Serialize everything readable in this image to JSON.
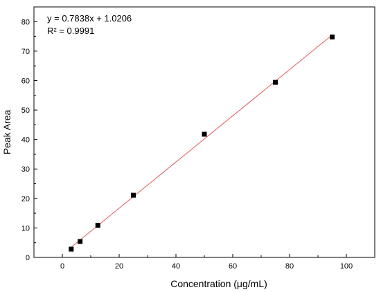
{
  "chart_data": {
    "type": "scatter",
    "xlabel": "Concentration (μg/mL)",
    "ylabel": "Peak Area",
    "xlim": [
      -10,
      110
    ],
    "ylim": [
      0,
      85
    ],
    "xticks": [
      0,
      20,
      40,
      60,
      80,
      100
    ],
    "yticks": [
      0,
      10,
      20,
      30,
      40,
      50,
      60,
      70,
      80
    ],
    "grid": false,
    "annotations": [
      "y = 0.7838x + 1.0206",
      "R² = 0.9991"
    ],
    "series": [
      {
        "x": [
          3.125,
          6.25,
          12.5,
          25,
          50,
          75,
          95
        ],
        "y": [
          2.8,
          5.4,
          10.9,
          21.1,
          41.8,
          59.4,
          74.8
        ],
        "marker": "square",
        "color": "#000000"
      }
    ],
    "fit_line": {
      "slope": 0.7838,
      "intercept": 1.0206,
      "x_range": [
        3.125,
        95
      ],
      "color": "#e05a5a"
    }
  }
}
